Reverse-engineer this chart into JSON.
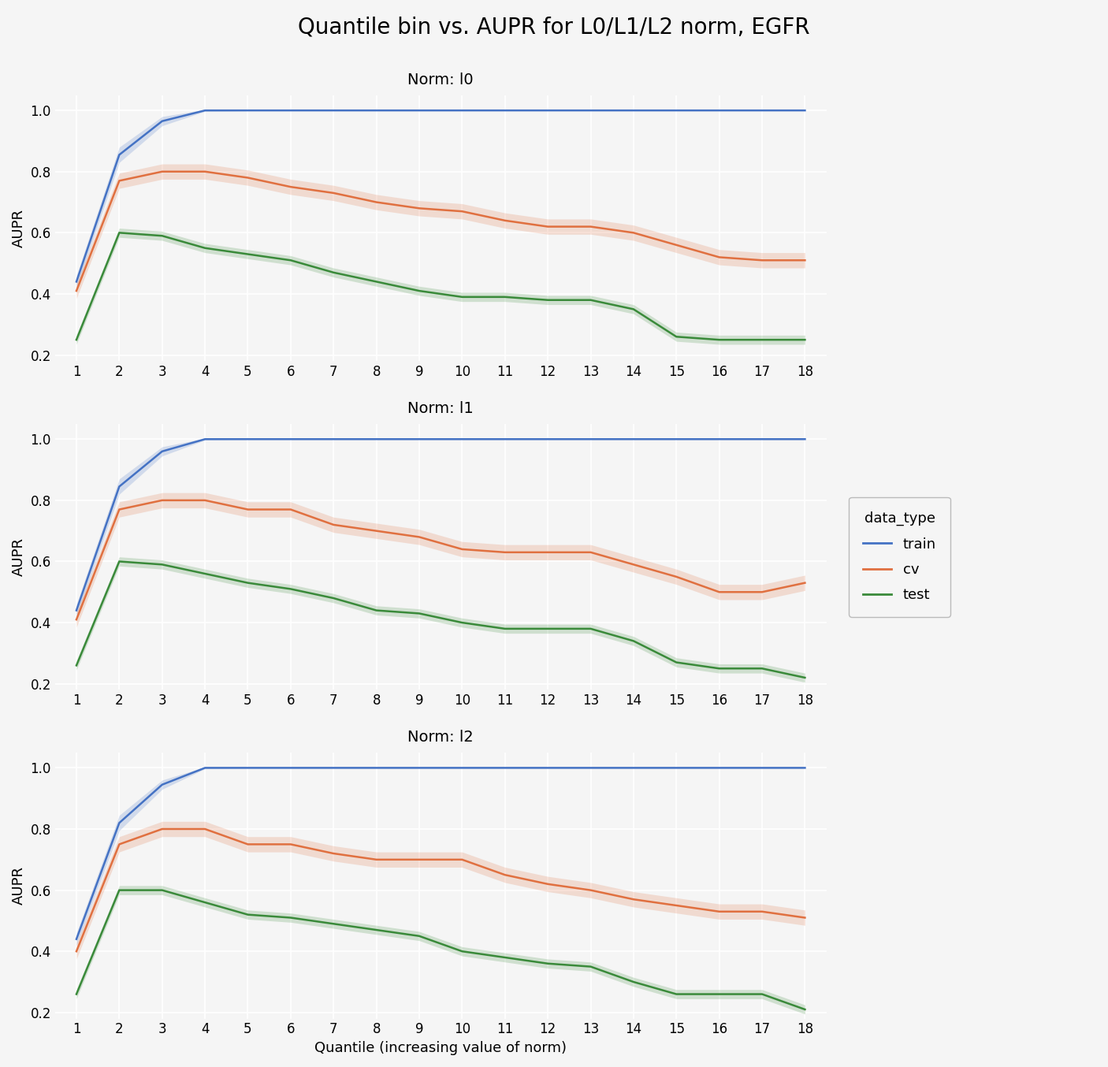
{
  "title": "Quantile bin vs. AUPR for L0/L1/L2 norm, EGFR",
  "xlabel": "Quantile (increasing value of norm)",
  "ylabel": "AUPR",
  "norms": [
    "l0",
    "l1",
    "l2"
  ],
  "norm_labels": [
    "Norm: l0",
    "Norm: l1",
    "Norm: l2"
  ],
  "quantiles": [
    1,
    2,
    3,
    4,
    5,
    6,
    7,
    8,
    9,
    10,
    11,
    12,
    13,
    14,
    15,
    16,
    17,
    18
  ],
  "train_color": "#4472C4",
  "cv_color": "#E07040",
  "test_color": "#3A8A3A",
  "train_label": "train",
  "cv_label": "cv",
  "test_label": "test",
  "data": {
    "l0": {
      "train_mean": [
        0.44,
        0.855,
        0.965,
        1.0,
        1.0,
        1.0,
        1.0,
        1.0,
        1.0,
        1.0,
        1.0,
        1.0,
        1.0,
        1.0,
        1.0,
        1.0,
        1.0,
        1.0
      ],
      "train_std": [
        0.02,
        0.025,
        0.015,
        0.003,
        0.001,
        0.001,
        0.001,
        0.001,
        0.001,
        0.001,
        0.001,
        0.001,
        0.001,
        0.001,
        0.001,
        0.001,
        0.001,
        0.001
      ],
      "cv_mean": [
        0.41,
        0.77,
        0.8,
        0.8,
        0.78,
        0.75,
        0.73,
        0.7,
        0.68,
        0.67,
        0.64,
        0.62,
        0.62,
        0.6,
        0.56,
        0.52,
        0.51,
        0.51
      ],
      "cv_std": [
        0.025,
        0.025,
        0.025,
        0.025,
        0.025,
        0.025,
        0.025,
        0.025,
        0.025,
        0.025,
        0.025,
        0.025,
        0.025,
        0.025,
        0.025,
        0.025,
        0.025,
        0.025
      ],
      "test_mean": [
        0.25,
        0.6,
        0.59,
        0.55,
        0.53,
        0.51,
        0.47,
        0.44,
        0.41,
        0.39,
        0.39,
        0.38,
        0.38,
        0.35,
        0.26,
        0.25,
        0.25,
        0.25
      ],
      "test_std": [
        0.015,
        0.015,
        0.015,
        0.015,
        0.015,
        0.015,
        0.015,
        0.015,
        0.015,
        0.015,
        0.015,
        0.015,
        0.015,
        0.015,
        0.015,
        0.015,
        0.015,
        0.015
      ]
    },
    "l1": {
      "train_mean": [
        0.44,
        0.845,
        0.96,
        1.0,
        1.0,
        1.0,
        1.0,
        1.0,
        1.0,
        1.0,
        1.0,
        1.0,
        1.0,
        1.0,
        1.0,
        1.0,
        1.0,
        1.0
      ],
      "train_std": [
        0.02,
        0.025,
        0.015,
        0.003,
        0.001,
        0.001,
        0.001,
        0.001,
        0.001,
        0.001,
        0.001,
        0.001,
        0.001,
        0.001,
        0.001,
        0.001,
        0.001,
        0.001
      ],
      "cv_mean": [
        0.41,
        0.77,
        0.8,
        0.8,
        0.77,
        0.77,
        0.72,
        0.7,
        0.68,
        0.64,
        0.63,
        0.63,
        0.63,
        0.59,
        0.55,
        0.5,
        0.5,
        0.53
      ],
      "cv_std": [
        0.025,
        0.025,
        0.025,
        0.025,
        0.025,
        0.025,
        0.025,
        0.025,
        0.025,
        0.025,
        0.025,
        0.025,
        0.025,
        0.025,
        0.025,
        0.025,
        0.025,
        0.025
      ],
      "test_mean": [
        0.26,
        0.6,
        0.59,
        0.56,
        0.53,
        0.51,
        0.48,
        0.44,
        0.43,
        0.4,
        0.38,
        0.38,
        0.38,
        0.34,
        0.27,
        0.25,
        0.25,
        0.22
      ],
      "test_std": [
        0.015,
        0.015,
        0.015,
        0.015,
        0.015,
        0.015,
        0.015,
        0.015,
        0.015,
        0.015,
        0.015,
        0.015,
        0.015,
        0.015,
        0.015,
        0.015,
        0.015,
        0.015
      ]
    },
    "l2": {
      "train_mean": [
        0.44,
        0.82,
        0.945,
        1.0,
        1.0,
        1.0,
        1.0,
        1.0,
        1.0,
        1.0,
        1.0,
        1.0,
        1.0,
        1.0,
        1.0,
        1.0,
        1.0,
        1.0
      ],
      "train_std": [
        0.02,
        0.025,
        0.015,
        0.003,
        0.001,
        0.001,
        0.001,
        0.001,
        0.001,
        0.001,
        0.001,
        0.001,
        0.001,
        0.001,
        0.001,
        0.001,
        0.001,
        0.001
      ],
      "cv_mean": [
        0.4,
        0.75,
        0.8,
        0.8,
        0.75,
        0.75,
        0.72,
        0.7,
        0.7,
        0.7,
        0.65,
        0.62,
        0.6,
        0.57,
        0.55,
        0.53,
        0.53,
        0.51
      ],
      "cv_std": [
        0.025,
        0.025,
        0.025,
        0.025,
        0.025,
        0.025,
        0.025,
        0.025,
        0.025,
        0.025,
        0.025,
        0.025,
        0.025,
        0.025,
        0.025,
        0.025,
        0.025,
        0.025
      ],
      "test_mean": [
        0.26,
        0.6,
        0.6,
        0.56,
        0.52,
        0.51,
        0.49,
        0.47,
        0.45,
        0.4,
        0.38,
        0.36,
        0.35,
        0.3,
        0.26,
        0.26,
        0.26,
        0.21
      ],
      "test_std": [
        0.015,
        0.015,
        0.015,
        0.015,
        0.015,
        0.015,
        0.015,
        0.015,
        0.015,
        0.015,
        0.015,
        0.015,
        0.015,
        0.015,
        0.015,
        0.015,
        0.015,
        0.015
      ]
    }
  },
  "ylim": [
    0.18,
    1.05
  ],
  "yticks": [
    0.2,
    0.4,
    0.6,
    0.8,
    1.0
  ],
  "xticks": [
    1,
    2,
    3,
    4,
    5,
    6,
    7,
    8,
    9,
    10,
    11,
    12,
    13,
    14,
    15,
    16,
    17,
    18
  ],
  "background_color": "#f5f5f5",
  "panel_color": "#f5f5f5",
  "grid_color": "#ffffff",
  "title_fontsize": 20,
  "label_fontsize": 13,
  "tick_fontsize": 12,
  "legend_fontsize": 13,
  "subplot_title_fontsize": 14
}
